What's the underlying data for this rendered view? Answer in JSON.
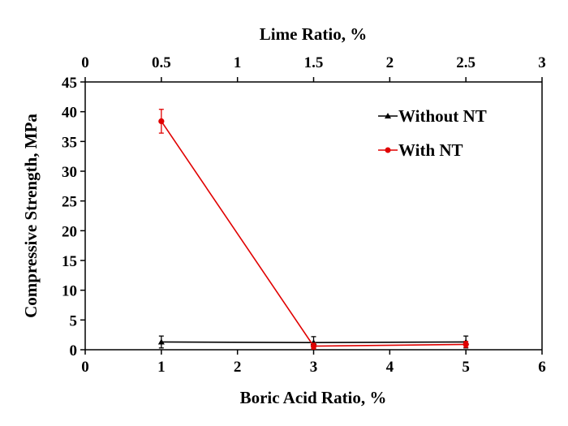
{
  "chart_data": {
    "type": "line",
    "top_axis": {
      "label": "Lime Ratio, %",
      "range": [
        0,
        3
      ],
      "ticks": [
        "0",
        "0.5",
        "1",
        "1.5",
        "2",
        "2.5",
        "3"
      ]
    },
    "x_axis": {
      "label": "Boric Acid Ratio, %",
      "range": [
        0,
        6
      ],
      "ticks": [
        "0",
        "1",
        "2",
        "3",
        "4",
        "5",
        "6"
      ]
    },
    "y_axis": {
      "label": "Compressive Strength, MPa",
      "range": [
        0,
        45
      ],
      "ticks": [
        "0",
        "5",
        "10",
        "15",
        "20",
        "25",
        "30",
        "35",
        "40",
        "45"
      ]
    },
    "series": [
      {
        "name": "Without NT",
        "color": "#000000",
        "marker": "triangle",
        "x": [
          1,
          3,
          5
        ],
        "y": [
          1.3,
          1.2,
          1.3
        ],
        "error": [
          1.0,
          1.0,
          1.0
        ]
      },
      {
        "name": "With NT",
        "color": "#e00000",
        "marker": "circle",
        "x": [
          1,
          3,
          5
        ],
        "y": [
          38.4,
          0.6,
          0.9
        ],
        "error": [
          2.0,
          0.5,
          0.5
        ]
      }
    ],
    "legend": {
      "placement": "top-right"
    }
  }
}
